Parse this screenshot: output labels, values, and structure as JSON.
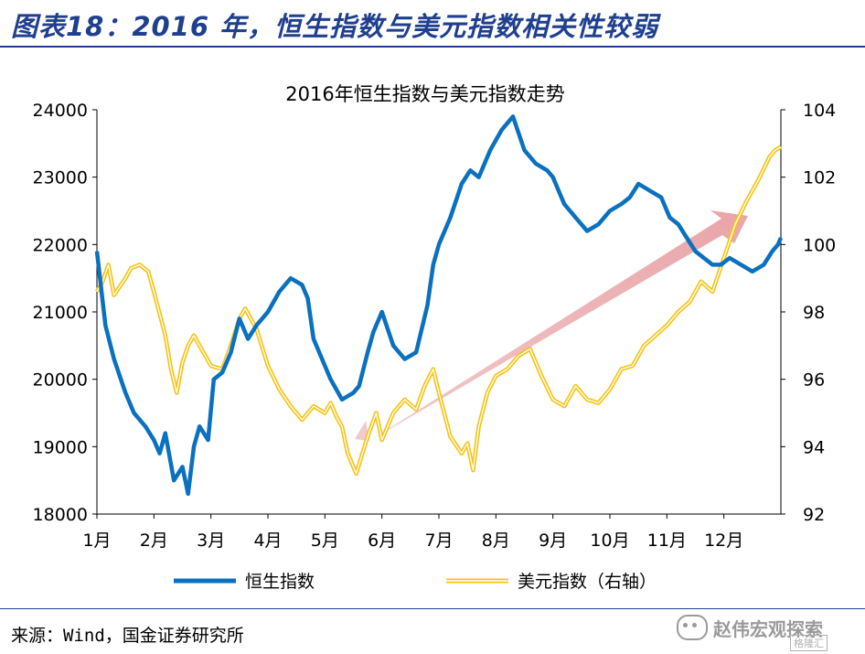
{
  "header": {
    "figure_title": "图表18：2016 年，恒生指数与美元指数相关性较弱"
  },
  "footer": {
    "source": "来源：Wind，国金证券研究所"
  },
  "watermark": {
    "name": "赵伟宏观探索",
    "sub": "格隆汇"
  },
  "colors": {
    "hsi": "#0a70c0",
    "dxy": "#f5c418",
    "arrow": "#e8a0a4",
    "axis": "#000000"
  },
  "icons": {
    "watermark": "wechat-icon"
  },
  "chart_data": {
    "type": "line",
    "title": "2016年恒生指数与美元指数走势",
    "x_categories": [
      "1月",
      "2月",
      "3月",
      "4月",
      "5月",
      "6月",
      "7月",
      "8月",
      "9月",
      "10月",
      "11月",
      "12月"
    ],
    "y_left": {
      "min": 18000,
      "max": 24000,
      "ticks": [
        18000,
        19000,
        20000,
        21000,
        22000,
        23000,
        24000
      ]
    },
    "y_right": {
      "min": 92,
      "max": 104,
      "ticks": [
        92,
        94,
        96,
        98,
        100,
        102,
        104
      ],
      "label": "右轴"
    },
    "series": [
      {
        "name": "恒生指数",
        "axis": "left",
        "x": [
          0,
          0.15,
          0.3,
          0.5,
          0.65,
          0.85,
          1.0,
          1.1,
          1.2,
          1.35,
          1.5,
          1.6,
          1.7,
          1.8,
          1.95,
          2.05,
          2.2,
          2.35,
          2.5,
          2.65,
          2.8,
          3.0,
          3.2,
          3.4,
          3.6,
          3.7,
          3.8,
          4.0,
          4.1,
          4.3,
          4.5,
          4.6,
          4.75,
          4.85,
          5.0,
          5.2,
          5.4,
          5.6,
          5.8,
          5.9,
          6.0,
          6.2,
          6.4,
          6.55,
          6.7,
          6.9,
          7.1,
          7.3,
          7.5,
          7.7,
          7.9,
          8.0,
          8.2,
          8.4,
          8.6,
          8.8,
          9.0,
          9.2,
          9.35,
          9.5,
          9.7,
          9.9,
          10.05,
          10.2,
          10.35,
          10.5,
          10.65,
          10.8,
          10.95,
          11.1,
          11.3,
          11.5,
          11.7,
          11.85,
          11.95,
          12.0
        ],
        "values": [
          21900,
          20800,
          20300,
          19800,
          19500,
          19300,
          19100,
          18900,
          19200,
          18500,
          18700,
          18300,
          19000,
          19300,
          19100,
          20000,
          20100,
          20400,
          20900,
          20600,
          20800,
          21000,
          21300,
          21500,
          21400,
          21200,
          20600,
          20200,
          20000,
          19700,
          19800,
          19900,
          20400,
          20700,
          21000,
          20500,
          20300,
          20400,
          21100,
          21700,
          22000,
          22400,
          22900,
          23100,
          23000,
          23400,
          23700,
          23900,
          23400,
          23200,
          23100,
          23000,
          22600,
          22400,
          22200,
          22300,
          22500,
          22600,
          22700,
          22900,
          22800,
          22700,
          22400,
          22300,
          22100,
          21900,
          21800,
          21700,
          21700,
          21800,
          21700,
          21600,
          21700,
          21900,
          22000,
          22100
        ]
      },
      {
        "name": "美元指数（右轴）",
        "axis": "right",
        "x": [
          0,
          0.1,
          0.2,
          0.3,
          0.5,
          0.6,
          0.75,
          0.9,
          1.0,
          1.2,
          1.3,
          1.4,
          1.5,
          1.6,
          1.7,
          1.8,
          2.0,
          2.2,
          2.35,
          2.5,
          2.6,
          2.8,
          3.0,
          3.2,
          3.4,
          3.6,
          3.8,
          4.0,
          4.1,
          4.2,
          4.3,
          4.4,
          4.55,
          4.75,
          4.9,
          5.0,
          5.2,
          5.4,
          5.6,
          5.75,
          5.9,
          6.0,
          6.2,
          6.4,
          6.5,
          6.6,
          6.7,
          6.85,
          7.0,
          7.2,
          7.4,
          7.6,
          7.8,
          8.0,
          8.2,
          8.4,
          8.6,
          8.8,
          9.0,
          9.2,
          9.4,
          9.6,
          9.8,
          10.0,
          10.2,
          10.4,
          10.6,
          10.8,
          11.0,
          11.2,
          11.4,
          11.6,
          11.8,
          11.9,
          12.0
        ],
        "values": [
          98.6,
          98.9,
          99.4,
          98.5,
          99.0,
          99.3,
          99.4,
          99.2,
          98.6,
          97.3,
          96.3,
          95.6,
          96.5,
          97.0,
          97.3,
          97.0,
          96.4,
          96.3,
          97.0,
          97.8,
          98.1,
          97.5,
          96.4,
          95.7,
          95.2,
          94.8,
          95.2,
          95.0,
          95.3,
          94.9,
          94.6,
          93.8,
          93.2,
          94.3,
          95.0,
          94.2,
          95.0,
          95.4,
          95.1,
          95.8,
          96.3,
          95.6,
          94.3,
          93.8,
          94.1,
          93.3,
          94.6,
          95.6,
          96.1,
          96.3,
          96.7,
          96.9,
          96.1,
          95.4,
          95.2,
          95.8,
          95.4,
          95.3,
          95.7,
          96.3,
          96.4,
          97.0,
          97.3,
          97.6,
          98.0,
          98.3,
          98.9,
          98.6,
          99.6,
          100.6,
          101.3,
          101.9,
          102.6,
          102.8,
          102.9
        ]
      }
    ],
    "legend": {
      "position": "bottom",
      "hsi_label": "恒生指数",
      "dxy_label": "美元指数（右轴）"
    },
    "annotation": "arrow pointing upper-right along the bottom-left to top-right trend"
  }
}
